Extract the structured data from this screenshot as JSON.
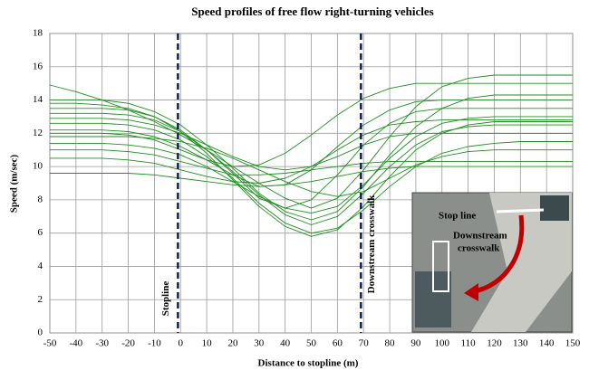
{
  "chart_data": {
    "type": "line",
    "title": "Speed profiles of free flow right-turning vehicles",
    "x_label": "Distance to stopline (m)",
    "y_label": "Speed (m/sec)",
    "x": [
      -50,
      -40,
      -30,
      -20,
      -10,
      0,
      10,
      20,
      30,
      40,
      50,
      60,
      70,
      80,
      90,
      100,
      110,
      120,
      130,
      140,
      150
    ],
    "xlim": [
      -50,
      150
    ],
    "ylim": [
      0,
      18
    ],
    "xticks": [
      -50,
      -40,
      -30,
      -20,
      -10,
      0,
      10,
      20,
      30,
      40,
      50,
      60,
      70,
      80,
      90,
      100,
      110,
      120,
      130,
      140,
      150
    ],
    "yticks": [
      0,
      2,
      4,
      6,
      8,
      10,
      12,
      14,
      16,
      18
    ],
    "grid": true,
    "vlines": [
      {
        "x": -1,
        "label": "Stopline"
      },
      {
        "x": 69,
        "label": "Downstream crosswalk"
      }
    ],
    "inset_labels": [
      "Stop line",
      "Downstream",
      "crosswalk"
    ],
    "series": [
      {
        "color": "#1f8f1f",
        "values": [
          13.2,
          13.2,
          13.2,
          13.1,
          12.8,
          12.1,
          11,
          9.7,
          8.3,
          7.1,
          6.5,
          7,
          8.4,
          10,
          11.3,
          12.1,
          12.4,
          12.5,
          12.5,
          12.5,
          12.5
        ]
      },
      {
        "color": "#1f8f1f",
        "values": [
          12.2,
          12.2,
          12.2,
          12.1,
          11.8,
          11.2,
          10.4,
          9.5,
          8.8,
          8.9,
          9.8,
          11.2,
          12.5,
          13.4,
          13.9,
          14,
          14,
          14,
          14,
          14,
          14
        ]
      },
      {
        "color": "#1f8f1f",
        "values": [
          11,
          11,
          11,
          10.9,
          10.7,
          10.3,
          9.9,
          9.5,
          9.5,
          9.6,
          9.8,
          10,
          10.2,
          10.3,
          10.3,
          10.3,
          10.3,
          10.3,
          10.3,
          10.3,
          10.3
        ]
      },
      {
        "color": "#1f8f1f",
        "values": [
          14.9,
          14.5,
          14,
          13.4,
          12.7,
          11.9,
          11,
          10,
          9,
          8.1,
          7.5,
          8.1,
          9.8,
          11.8,
          13.6,
          14.8,
          15.3,
          15.5,
          15.5,
          15.5,
          15.5
        ]
      },
      {
        "color": "#1f8f1f",
        "values": [
          12.6,
          12.6,
          12.6,
          12.5,
          12.2,
          11.6,
          10.6,
          9.3,
          7.8,
          6.6,
          6,
          6.3,
          7.4,
          8.8,
          10,
          10.8,
          11.2,
          11.4,
          11.5,
          11.5,
          11.5
        ]
      },
      {
        "color": "#1f8f1f",
        "values": [
          10.5,
          10.5,
          10.5,
          10.4,
          10.2,
          9.8,
          9.4,
          9.1,
          9,
          9.3,
          10,
          11,
          11.9,
          12.5,
          12.7,
          12.8,
          12.8,
          12.8,
          12.8,
          12.8,
          12.8
        ]
      },
      {
        "color": "#1f8f1f",
        "values": [
          13.5,
          13.5,
          13.5,
          13.4,
          13,
          12.2,
          11,
          9.6,
          8.1,
          7.5,
          8,
          9.5,
          11.3,
          12.6,
          13.3,
          13.5,
          13.5,
          13.5,
          13.5,
          13.5,
          13.5
        ]
      },
      {
        "color": "#1f8f1f",
        "values": [
          11.8,
          11.8,
          11.8,
          11.8,
          11.7,
          11.5,
          11.1,
          10.5,
          9.8,
          9.1,
          8.5,
          8.2,
          8.5,
          9.3,
          10.1,
          10.6,
          10.9,
          11,
          11,
          11,
          11
        ]
      },
      {
        "color": "#1f8f1f",
        "values": [
          12,
          12,
          12,
          11.9,
          11.6,
          11,
          10.4,
          10,
          10.1,
          10.8,
          11.9,
          13.1,
          14.1,
          14.7,
          15,
          15,
          15,
          15,
          15,
          15,
          15
        ]
      },
      {
        "color": "#1f8f1f",
        "values": [
          9.6,
          9.6,
          9.6,
          9.6,
          9.5,
          9.3,
          9.1,
          8.9,
          8.8,
          8.9,
          9.1,
          9.4,
          9.7,
          9.9,
          10,
          10,
          10,
          10,
          10,
          10,
          10
        ]
      },
      {
        "color": "#1f8f1f",
        "values": [
          14,
          14,
          14,
          13.8,
          13.3,
          12.5,
          11.3,
          9.9,
          8.4,
          7.3,
          6.8,
          7.3,
          8.8,
          10.7,
          12.4,
          13.5,
          14.1,
          14.3,
          14.3,
          14.3,
          14.3
        ]
      },
      {
        "color": "#1f8f1f",
        "values": [
          12.9,
          12.9,
          12.9,
          12.8,
          12.5,
          12,
          11.3,
          10.6,
          10,
          9.8,
          10,
          10.6,
          11.3,
          11.8,
          12,
          12,
          12,
          12,
          12,
          12,
          12
        ]
      },
      {
        "color": "#1f8f1f",
        "values": [
          11.4,
          11.4,
          11.4,
          11.3,
          11.1,
          10.7,
          10,
          9.1,
          8.2,
          7.5,
          7.2,
          7.6,
          8.9,
          10.5,
          11.8,
          12.6,
          12.9,
          13,
          13,
          13,
          13
        ]
      },
      {
        "color": "#1f8f1f",
        "values": [
          13.8,
          13.8,
          13.7,
          13.5,
          13,
          12.1,
          10.8,
          9.2,
          7.6,
          6.4,
          5.8,
          6.2,
          7.6,
          9.4,
          11,
          12,
          12.5,
          12.7,
          12.7,
          12.7,
          12.7
        ]
      }
    ]
  }
}
